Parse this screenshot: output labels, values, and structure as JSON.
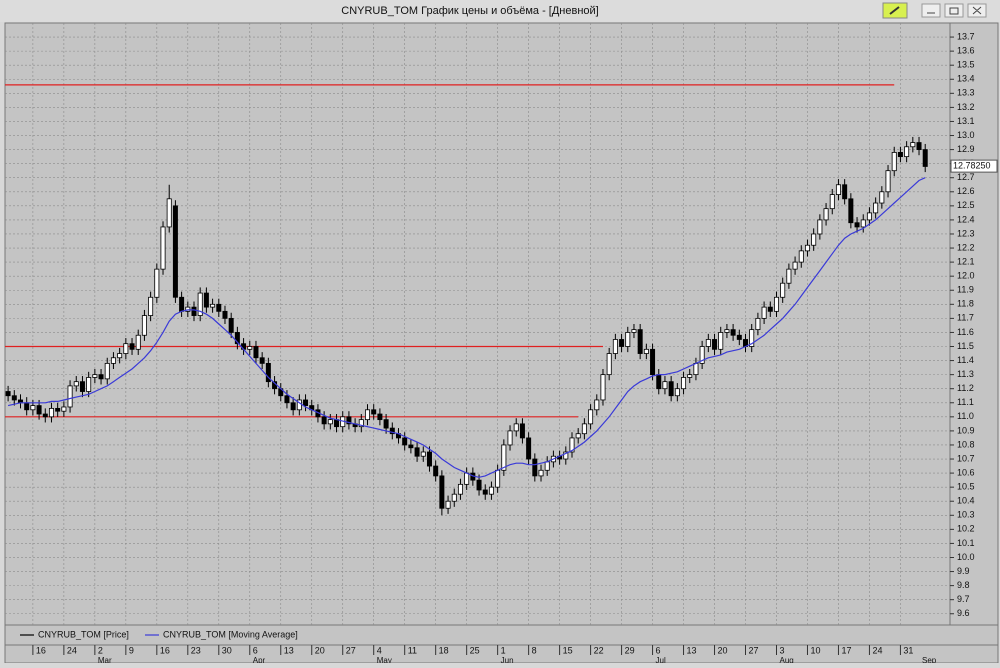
{
  "chart_data": {
    "type": "candlestick",
    "title": "CNYRUB_TOM График цены и объёма - [Дневной]",
    "xlim": [
      -0.5,
      152
    ],
    "ylim": [
      9.52,
      13.8
    ],
    "grid": true,
    "xticks": [
      {
        "value": 4,
        "label": "16"
      },
      {
        "value": 9,
        "label": "24"
      },
      {
        "value": 14,
        "label": "2"
      },
      {
        "value": 19,
        "label": "9"
      },
      {
        "value": 24,
        "label": "16"
      },
      {
        "value": 29,
        "label": "23"
      },
      {
        "value": 34,
        "label": "30"
      },
      {
        "value": 39,
        "label": "6"
      },
      {
        "value": 44,
        "label": "13"
      },
      {
        "value": 49,
        "label": "20"
      },
      {
        "value": 54,
        "label": "27"
      },
      {
        "value": 59,
        "label": "4"
      },
      {
        "value": 64,
        "label": "11"
      },
      {
        "value": 69,
        "label": "18"
      },
      {
        "value": 74,
        "label": "25"
      },
      {
        "value": 79,
        "label": "1"
      },
      {
        "value": 84,
        "label": "8"
      },
      {
        "value": 89,
        "label": "15"
      },
      {
        "value": 94,
        "label": "22"
      },
      {
        "value": 99,
        "label": "29"
      },
      {
        "value": 104,
        "label": "6"
      },
      {
        "value": 109,
        "label": "13"
      },
      {
        "value": 114,
        "label": "20"
      },
      {
        "value": 119,
        "label": "27"
      },
      {
        "value": 124,
        "label": "3"
      },
      {
        "value": 129,
        "label": "10"
      },
      {
        "value": 134,
        "label": "17"
      },
      {
        "value": 139,
        "label": "24"
      },
      {
        "value": 144,
        "label": "31"
      }
    ],
    "months": [
      {
        "value": 14,
        "label": "Mar"
      },
      {
        "value": 39,
        "label": "Apr"
      },
      {
        "value": 59,
        "label": "May"
      },
      {
        "value": 79,
        "label": "Jun"
      },
      {
        "value": 104,
        "label": "Jul"
      },
      {
        "value": 124,
        "label": "Aug"
      },
      {
        "value": 147,
        "label": "Sep"
      }
    ],
    "yticks": [
      9.6,
      9.7,
      9.8,
      9.9,
      {
        "value": 10,
        "label": "10.0"
      },
      10.1,
      10.2,
      10.3,
      10.4,
      10.5,
      10.6,
      10.7,
      10.8,
      10.9,
      {
        "value": 11,
        "label": "11.0"
      },
      11.1,
      11.2,
      11.3,
      11.4,
      11.5,
      11.6,
      11.7,
      11.8,
      11.9,
      {
        "value": 12,
        "label": "12.0"
      },
      12.1,
      12.2,
      12.3,
      12.4,
      12.5,
      12.6,
      12.7,
      12.8,
      12.9,
      {
        "value": 13,
        "label": "13.0"
      },
      13.1,
      13.2,
      13.3,
      13.4,
      13.5,
      13.6,
      13.7
    ],
    "last_price": {
      "value": 12.7825,
      "label": "12.78250"
    },
    "levels": [
      {
        "value": 13.36,
        "to": 143,
        "color": "#e02020"
      },
      {
        "value": 11.5,
        "to": 96,
        "color": "#e02020"
      },
      {
        "value": 11.0,
        "to": 92,
        "color": "#e02020"
      }
    ],
    "series": [
      {
        "name": "CNYRUB_TOM [Price]",
        "color": "#000000",
        "up_color": "#ffffff",
        "open": [
          11.18,
          11.15,
          11.12,
          11.1,
          11.05,
          11.08,
          11.02,
          11.0,
          11.06,
          11.04,
          11.07,
          11.22,
          11.25,
          11.18,
          11.28,
          11.3,
          11.27,
          11.38,
          11.42,
          11.45,
          11.52,
          11.48,
          11.58,
          11.72,
          11.85,
          12.05,
          12.35,
          12.5,
          11.85,
          11.75,
          11.78,
          11.72,
          11.88,
          11.78,
          11.8,
          11.75,
          11.7,
          11.6,
          11.52,
          11.48,
          11.5,
          11.42,
          11.38,
          11.25,
          11.2,
          11.15,
          11.1,
          11.05,
          11.12,
          11.08,
          11.05,
          11.0,
          10.95,
          10.98,
          10.93,
          11.0,
          10.95,
          10.93,
          10.98,
          11.05,
          11.02,
          10.98,
          10.92,
          10.88,
          10.85,
          10.8,
          10.78,
          10.72,
          10.75,
          10.65,
          10.58,
          10.35,
          10.4,
          10.45,
          10.52,
          10.6,
          10.55,
          10.48,
          10.45,
          10.5,
          10.62,
          10.8,
          10.9,
          10.95,
          10.85,
          10.7,
          10.58,
          10.62,
          10.68,
          10.72,
          10.7,
          10.75,
          10.85,
          10.88,
          10.95,
          11.05,
          11.12,
          11.3,
          11.45,
          11.55,
          11.5,
          11.6,
          11.62,
          11.45,
          11.48,
          11.3,
          11.2,
          11.25,
          11.15,
          11.2,
          11.28,
          11.3,
          11.38,
          11.5,
          11.55,
          11.48,
          11.6,
          11.62,
          11.58,
          11.55,
          11.5,
          11.62,
          11.7,
          11.78,
          11.75,
          11.85,
          11.95,
          12.05,
          12.1,
          12.18,
          12.22,
          12.3,
          12.4,
          12.48,
          12.58,
          12.65,
          12.55,
          12.38,
          12.35,
          12.4,
          12.45,
          12.52,
          12.6,
          12.75,
          12.88,
          12.85,
          12.92,
          12.95,
          12.9
        ],
        "high": [
          11.22,
          11.19,
          11.16,
          11.14,
          11.12,
          11.12,
          11.06,
          11.1,
          11.1,
          11.11,
          11.26,
          11.29,
          11.29,
          11.32,
          11.34,
          11.34,
          11.42,
          11.46,
          11.49,
          11.56,
          11.56,
          11.62,
          11.76,
          11.89,
          12.09,
          12.39,
          12.65,
          12.54,
          11.89,
          11.82,
          11.82,
          11.92,
          11.92,
          11.84,
          11.84,
          11.79,
          11.74,
          11.64,
          11.56,
          11.54,
          11.54,
          11.46,
          11.42,
          11.29,
          11.24,
          11.19,
          11.14,
          11.16,
          11.16,
          11.12,
          11.09,
          11.04,
          11.02,
          11.02,
          11.04,
          11.04,
          10.99,
          11.02,
          11.09,
          11.09,
          11.06,
          11.02,
          10.96,
          10.92,
          10.89,
          10.84,
          10.82,
          10.79,
          10.79,
          10.69,
          10.62,
          10.44,
          10.49,
          10.56,
          10.64,
          10.64,
          10.59,
          10.52,
          10.54,
          10.66,
          10.84,
          10.94,
          10.99,
          10.99,
          10.89,
          10.74,
          10.66,
          10.72,
          10.76,
          10.76,
          10.79,
          10.89,
          10.92,
          10.99,
          11.09,
          11.16,
          11.34,
          11.49,
          11.59,
          11.59,
          11.64,
          11.66,
          11.66,
          11.52,
          11.52,
          11.34,
          11.29,
          11.29,
          11.24,
          11.32,
          11.34,
          11.42,
          11.54,
          11.59,
          11.59,
          11.64,
          11.66,
          11.66,
          11.62,
          11.59,
          11.66,
          11.74,
          11.82,
          11.82,
          11.89,
          11.99,
          12.09,
          12.14,
          12.22,
          12.26,
          12.34,
          12.44,
          12.52,
          12.62,
          12.69,
          12.69,
          12.59,
          12.42,
          12.44,
          12.49,
          12.56,
          12.64,
          12.79,
          12.92,
          12.92,
          12.96,
          12.99,
          12.99,
          12.94
        ],
        "low": [
          11.11,
          11.08,
          11.06,
          11.01,
          11.01,
          10.98,
          10.96,
          10.96,
          11.0,
          11.0,
          11.03,
          11.18,
          11.14,
          11.14,
          11.24,
          11.23,
          11.23,
          11.34,
          11.38,
          11.41,
          11.44,
          11.44,
          11.54,
          11.68,
          11.81,
          12.01,
          12.31,
          11.81,
          11.71,
          11.71,
          11.68,
          11.68,
          11.74,
          11.74,
          11.71,
          11.66,
          11.56,
          11.48,
          11.44,
          11.44,
          11.38,
          11.34,
          11.21,
          11.16,
          11.11,
          11.06,
          11.01,
          11.01,
          11.04,
          11.01,
          10.96,
          10.91,
          10.91,
          10.89,
          10.89,
          10.91,
          10.89,
          10.89,
          10.94,
          10.98,
          10.94,
          10.88,
          10.84,
          10.81,
          10.76,
          10.74,
          10.68,
          10.68,
          10.61,
          10.54,
          10.3,
          10.31,
          10.36,
          10.41,
          10.48,
          10.51,
          10.44,
          10.41,
          10.41,
          10.46,
          10.58,
          10.76,
          10.86,
          10.81,
          10.66,
          10.54,
          10.54,
          10.58,
          10.64,
          10.66,
          10.66,
          10.71,
          10.81,
          10.84,
          10.91,
          11.01,
          11.08,
          11.26,
          11.41,
          11.46,
          11.46,
          11.56,
          11.41,
          11.41,
          11.26,
          11.16,
          11.16,
          11.11,
          11.11,
          11.16,
          11.24,
          11.26,
          11.34,
          11.46,
          11.44,
          11.44,
          11.56,
          11.54,
          11.51,
          11.46,
          11.46,
          11.58,
          11.66,
          11.71,
          11.71,
          11.81,
          11.91,
          12.01,
          12.06,
          12.14,
          12.18,
          12.26,
          12.36,
          12.44,
          12.54,
          12.51,
          12.34,
          12.31,
          12.31,
          12.36,
          12.41,
          12.48,
          12.56,
          12.71,
          12.81,
          12.81,
          12.88,
          12.86,
          12.74
        ],
        "close": [
          11.15,
          11.12,
          11.1,
          11.05,
          11.08,
          11.02,
          11.0,
          11.06,
          11.04,
          11.07,
          11.22,
          11.25,
          11.18,
          11.28,
          11.3,
          11.27,
          11.38,
          11.42,
          11.45,
          11.52,
          11.48,
          11.58,
          11.72,
          11.85,
          12.05,
          12.35,
          12.55,
          11.85,
          11.75,
          11.78,
          11.72,
          11.88,
          11.78,
          11.8,
          11.75,
          11.7,
          11.6,
          11.52,
          11.48,
          11.5,
          11.42,
          11.38,
          11.25,
          11.2,
          11.15,
          11.1,
          11.05,
          11.12,
          11.08,
          11.05,
          11.0,
          10.95,
          10.98,
          10.93,
          11.0,
          10.95,
          10.93,
          10.98,
          11.05,
          11.02,
          10.98,
          10.92,
          10.88,
          10.85,
          10.8,
          10.78,
          10.72,
          10.75,
          10.65,
          10.58,
          10.35,
          10.4,
          10.45,
          10.52,
          10.6,
          10.55,
          10.48,
          10.45,
          10.5,
          10.62,
          10.8,
          10.9,
          10.95,
          10.85,
          10.7,
          10.58,
          10.62,
          10.68,
          10.72,
          10.7,
          10.75,
          10.85,
          10.88,
          10.95,
          11.05,
          11.12,
          11.3,
          11.45,
          11.55,
          11.5,
          11.6,
          11.62,
          11.45,
          11.48,
          11.3,
          11.2,
          11.25,
          11.15,
          11.2,
          11.28,
          11.3,
          11.38,
          11.5,
          11.55,
          11.48,
          11.6,
          11.62,
          11.58,
          11.55,
          11.5,
          11.62,
          11.7,
          11.78,
          11.75,
          11.85,
          11.95,
          12.05,
          12.1,
          12.18,
          12.22,
          12.3,
          12.4,
          12.48,
          12.58,
          12.65,
          12.55,
          12.38,
          12.35,
          12.4,
          12.45,
          12.52,
          12.6,
          12.75,
          12.88,
          12.85,
          12.92,
          12.95,
          12.9,
          12.78
        ]
      },
      {
        "name": "CNYRUB_TOM [Moving Average]",
        "color": "#3a3ad8",
        "values": [
          11.08,
          11.09,
          11.1,
          11.1,
          11.1,
          11.1,
          11.1,
          11.11,
          11.11,
          11.12,
          11.13,
          11.14,
          11.15,
          11.16,
          11.18,
          11.2,
          11.22,
          11.25,
          11.28,
          11.31,
          11.34,
          11.38,
          11.42,
          11.47,
          11.53,
          11.6,
          11.68,
          11.73,
          11.75,
          11.76,
          11.76,
          11.75,
          11.73,
          11.7,
          11.66,
          11.62,
          11.58,
          11.53,
          11.48,
          11.43,
          11.38,
          11.33,
          11.28,
          11.24,
          11.2,
          11.16,
          11.13,
          11.1,
          11.07,
          11.05,
          11.03,
          11.01,
          10.99,
          10.98,
          10.97,
          10.96,
          10.95,
          10.94,
          10.93,
          10.92,
          10.91,
          10.9,
          10.89,
          10.88,
          10.86,
          10.84,
          10.82,
          10.8,
          10.77,
          10.74,
          10.7,
          10.67,
          10.64,
          10.62,
          10.6,
          10.58,
          10.57,
          10.58,
          10.6,
          10.62,
          10.64,
          10.66,
          10.67,
          10.67,
          10.66,
          10.66,
          10.67,
          10.68,
          10.7,
          10.72,
          10.74,
          10.76,
          10.79,
          10.82,
          10.86,
          10.9,
          10.95,
          11.0,
          11.06,
          11.12,
          11.18,
          11.22,
          11.25,
          11.27,
          11.29,
          11.3,
          11.3,
          11.31,
          11.32,
          11.34,
          11.36,
          11.38,
          11.4,
          11.42,
          11.43,
          11.44,
          11.46,
          11.47,
          11.48,
          11.5,
          11.52,
          11.55,
          11.58,
          11.62,
          11.66,
          11.7,
          11.75,
          11.8,
          11.86,
          11.92,
          11.98,
          12.04,
          12.1,
          12.16,
          12.22,
          12.27,
          12.3,
          12.32,
          12.34,
          12.37,
          12.4,
          12.44,
          12.48,
          12.52,
          12.56,
          12.6,
          12.64,
          12.68,
          12.7
        ]
      }
    ]
  }
}
